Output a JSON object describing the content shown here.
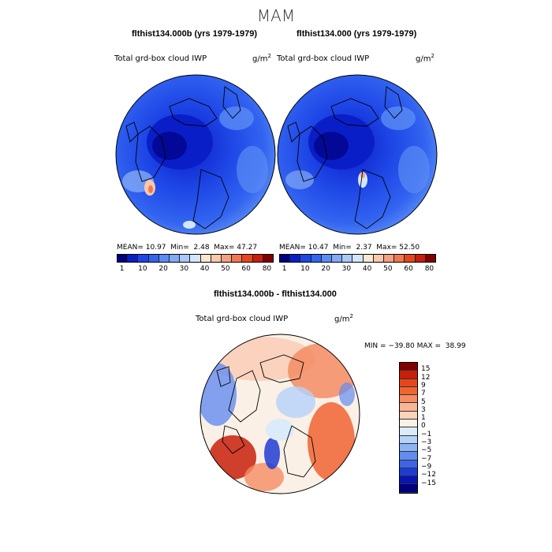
{
  "season": "MAM",
  "panels": [
    {
      "title": "flthist134.000b (yrs 1979-1979)",
      "field": "Total grd-box cloud IWP",
      "units_base": "g/m",
      "units_exp": "2",
      "mean_label": "MEAN=",
      "mean": "10.97",
      "min_label": "Min=",
      "min": "2.48",
      "max_label": "Max=",
      "max": "47.27"
    },
    {
      "title": "flthist134.000 (yrs 1979-1979)",
      "field": "Total grd-box cloud IWP",
      "units_base": "g/m",
      "units_exp": "2",
      "mean_label": "MEAN=",
      "mean": "10.47",
      "min_label": "Min=",
      "min": "2.37",
      "max_label": "Max=",
      "max": "52.50"
    }
  ],
  "abs_colorbar": {
    "colors": [
      "#000080",
      "#0a1ec8",
      "#1e46e6",
      "#3264f0",
      "#5a8cf5",
      "#82aaf5",
      "#aac8fa",
      "#d2e6fa",
      "#fae6d2",
      "#fac8aa",
      "#f5a082",
      "#f07850",
      "#e6461e",
      "#c81e0a",
      "#800000"
    ],
    "tick_labels": [
      "1",
      "10",
      "20",
      "30",
      "40",
      "50",
      "60",
      "80"
    ]
  },
  "diff": {
    "title": "flthist134.000b - flthist134.000",
    "field": "Total grd-box cloud IWP",
    "units_base": "g/m",
    "units_exp": "2",
    "minmax": "MIN = −39.80 MAX =  38.99",
    "colorbar": {
      "colors": [
        "#800000",
        "#c81e0a",
        "#e6461e",
        "#f06432",
        "#f58c64",
        "#fab496",
        "#fad2be",
        "#faf0e6",
        "#dcebfa",
        "#b4d2fa",
        "#8cb4f5",
        "#648cf0",
        "#3c64e6",
        "#1e3cd2",
        "#0a14b4",
        "#000080"
      ],
      "tick_labels": [
        "15",
        "12",
        "9",
        "7",
        "5",
        "3",
        "1",
        "0",
        "−1",
        "−3",
        "−5",
        "−7",
        "−9",
        "−12",
        "−15"
      ]
    }
  }
}
